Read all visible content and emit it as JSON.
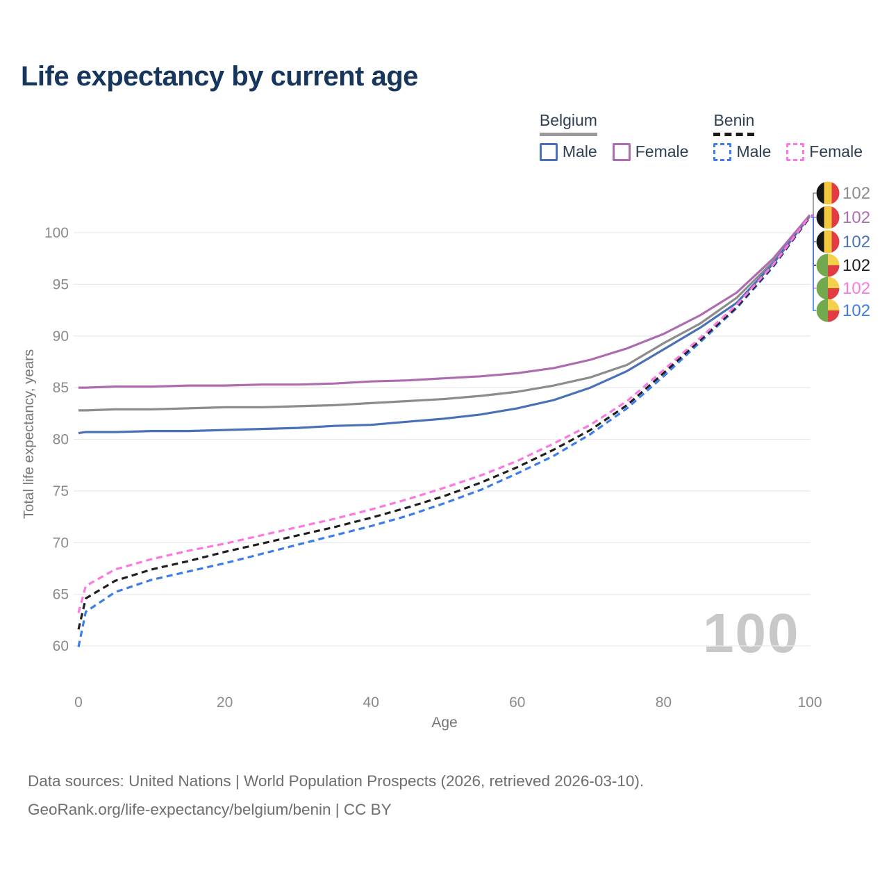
{
  "title": "Life expectancy by current age",
  "legend": {
    "groups": [
      {
        "country": "Belgium",
        "style": "solid",
        "underline_color": "#9a9a9a",
        "items": [
          {
            "label": "Male",
            "color": "#4a70b8",
            "dash": false
          },
          {
            "label": "Female",
            "color": "#ae6cb0",
            "dash": false
          }
        ]
      },
      {
        "country": "Benin",
        "style": "dashed",
        "underline_color": "#1a1a1a",
        "items": [
          {
            "label": "Male",
            "color": "#3d7ceb",
            "dash": true
          },
          {
            "label": "Female",
            "color": "#fb78e1",
            "dash": true
          }
        ]
      }
    ]
  },
  "chart_data": {
    "type": "line",
    "title": "Life expectancy by current age",
    "xlabel": "Age",
    "ylabel": "Total life expectancy, years",
    "xlim": [
      0,
      100
    ],
    "ylim": [
      58,
      103
    ],
    "x_ticks": [
      0,
      20,
      40,
      60,
      80,
      100
    ],
    "y_ticks": [
      60,
      65,
      70,
      75,
      80,
      85,
      90,
      95,
      100
    ],
    "grid": "horizontal gridlines only",
    "legend_position": "top-right",
    "watermark": "100",
    "ages": [
      0,
      1,
      5,
      10,
      15,
      20,
      25,
      30,
      35,
      40,
      45,
      50,
      55,
      60,
      65,
      70,
      75,
      80,
      85,
      90,
      95,
      100
    ],
    "series": [
      {
        "name": "Belgium (all)",
        "country": "Belgium",
        "sex": "all",
        "color": "#8c8c8c",
        "dashed": false,
        "flag": "belgium",
        "end_label": "102",
        "values": [
          82.8,
          82.8,
          82.9,
          82.9,
          83.0,
          83.1,
          83.1,
          83.2,
          83.3,
          83.5,
          83.7,
          83.9,
          84.2,
          84.6,
          85.2,
          86.0,
          87.2,
          89.3,
          91.2,
          93.7,
          97.2,
          101.7
        ]
      },
      {
        "name": "Belgium Female",
        "country": "Belgium",
        "sex": "female",
        "color": "#ae6cb0",
        "dashed": false,
        "flag": "belgium",
        "end_label": "102",
        "values": [
          85.0,
          85.0,
          85.1,
          85.1,
          85.2,
          85.2,
          85.3,
          85.3,
          85.4,
          85.6,
          85.7,
          85.9,
          86.1,
          86.4,
          86.9,
          87.7,
          88.8,
          90.2,
          92.0,
          94.2,
          97.5,
          101.7
        ]
      },
      {
        "name": "Belgium Male",
        "country": "Belgium",
        "sex": "male",
        "color": "#4a70b8",
        "dashed": false,
        "flag": "belgium",
        "end_label": "102",
        "values": [
          80.6,
          80.7,
          80.7,
          80.8,
          80.8,
          80.9,
          81.0,
          81.1,
          81.3,
          81.4,
          81.7,
          82.0,
          82.4,
          83.0,
          83.8,
          85.0,
          86.6,
          88.7,
          90.8,
          93.2,
          97.0,
          101.6
        ]
      },
      {
        "name": "Benin (all)",
        "country": "Benin",
        "sex": "all",
        "color": "#1f1f1f",
        "dashed": true,
        "flag": "benin",
        "end_label": "102",
        "values": [
          61.6,
          64.6,
          66.3,
          67.4,
          68.2,
          69.1,
          69.9,
          70.7,
          71.5,
          72.4,
          73.4,
          74.5,
          75.8,
          77.3,
          79.0,
          80.9,
          83.3,
          86.4,
          89.6,
          92.8,
          96.8,
          101.5
        ]
      },
      {
        "name": "Benin Female",
        "country": "Benin",
        "sex": "female",
        "color": "#fb78e1",
        "dashed": true,
        "flag": "benin",
        "end_label": "102",
        "values": [
          63.2,
          65.8,
          67.4,
          68.4,
          69.2,
          69.9,
          70.7,
          71.5,
          72.3,
          73.2,
          74.2,
          75.3,
          76.5,
          77.9,
          79.6,
          81.4,
          83.7,
          86.7,
          89.8,
          93.0,
          96.9,
          101.6
        ]
      },
      {
        "name": "Benin Male",
        "country": "Benin",
        "sex": "male",
        "color": "#3d7ceb",
        "dashed": true,
        "flag": "benin",
        "end_label": "102",
        "values": [
          59.9,
          63.3,
          65.2,
          66.4,
          67.2,
          68.0,
          68.9,
          69.8,
          70.7,
          71.6,
          72.6,
          73.8,
          75.1,
          76.7,
          78.4,
          80.5,
          83.0,
          86.1,
          89.4,
          92.7,
          96.7,
          101.5
        ]
      }
    ]
  },
  "footer": {
    "line1": "Data sources: United Nations | World Population Prospects (2026, retrieved 2026-03-10).",
    "line2": "GeoRank.org/life-expectancy/belgium/benin | CC BY"
  },
  "colors": {
    "title": "#17365d",
    "legend_text": "#2e3f54",
    "axis_text": "#8a8a8a",
    "gridline": "#e9e9e9",
    "watermark": "#c8c8c8",
    "footer_text": "#6e6e6e"
  }
}
